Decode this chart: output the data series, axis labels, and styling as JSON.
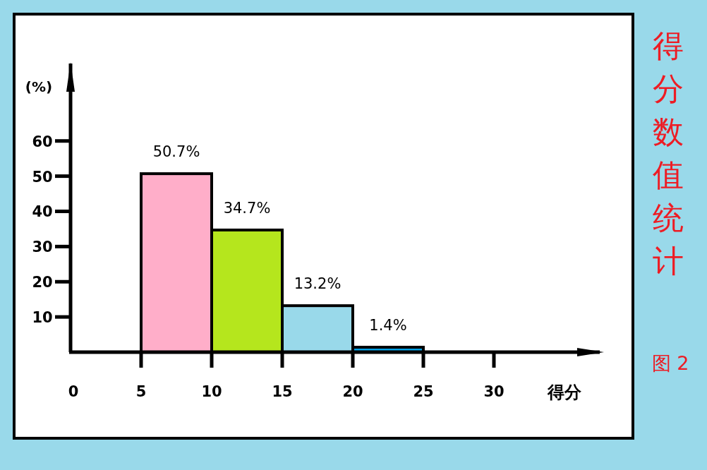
{
  "chart_data": {
    "type": "histogram",
    "title": "得分数值统计",
    "xlabel": "得分",
    "ylabel": "(%)",
    "annotations": [
      "图 2"
    ],
    "bins": [
      5,
      10,
      15,
      20,
      25
    ],
    "values": [
      50.7,
      34.7,
      13.2,
      1.4
    ],
    "colors": [
      "#ffaec9",
      "#b5e61d",
      "#99d9ea",
      "#00a2e8"
    ],
    "value_labels": [
      "50.7%",
      "34.7%",
      "13.2%",
      "1.4%"
    ],
    "xlim": [
      0,
      37.5
    ],
    "ylim": [
      0,
      82
    ],
    "xticks": [
      0,
      5,
      10,
      15,
      20,
      25,
      30
    ],
    "yticks": [
      10,
      20,
      30,
      40,
      50,
      60
    ]
  }
}
